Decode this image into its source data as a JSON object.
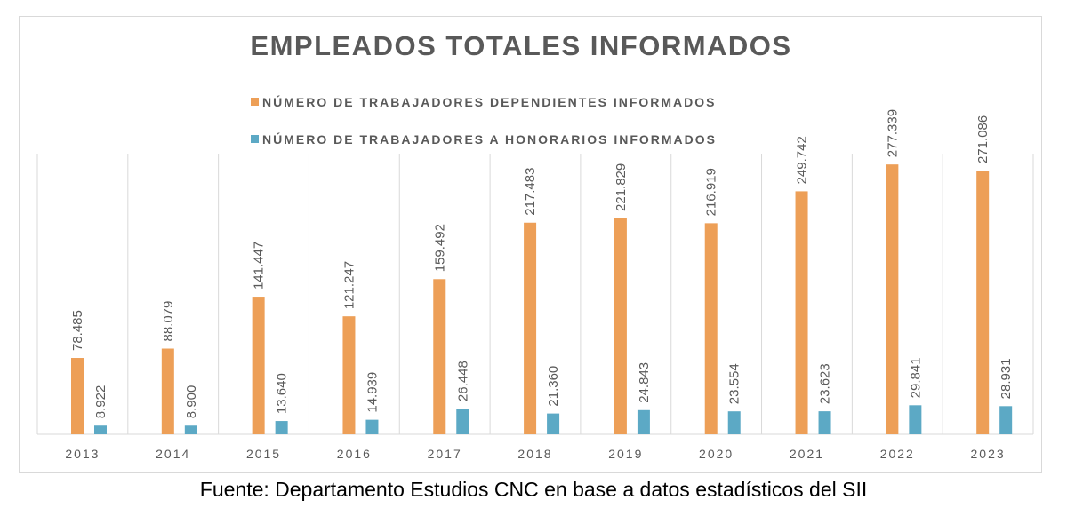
{
  "colors": {
    "dependientes": "#ed9f57",
    "honorarios": "#5ca9c5",
    "text": "#595959",
    "grid": "#d9d9d9"
  },
  "chart_data": {
    "type": "bar",
    "title": "EMPLEADOS TOTALES INFORMADOS",
    "xlabel": "",
    "ylabel": "",
    "ylim": [
      0,
      300000
    ],
    "grid": "vertical separators",
    "legend": "top-center",
    "categories": [
      "2013",
      "2014",
      "2015",
      "2016",
      "2017",
      "2018",
      "2019",
      "2020",
      "2021",
      "2022",
      "2023"
    ],
    "series": [
      {
        "name": "NÚMERO DE TRABAJADORES DEPENDIENTES INFORMADOS",
        "values": [
          78485,
          88079,
          141447,
          121247,
          159492,
          217483,
          221829,
          216919,
          249742,
          277339,
          271086
        ],
        "labels": [
          "78.485",
          "88.079",
          "141.447",
          "121.247",
          "159.492",
          "217.483",
          "221.829",
          "216.919",
          "249.742",
          "277.339",
          "271.086"
        ]
      },
      {
        "name": "NÚMERO DE TRABAJADORES A HONORARIOS INFORMADOS",
        "values": [
          8922,
          8900,
          13640,
          14939,
          26448,
          21360,
          24843,
          23554,
          23623,
          29841,
          28931
        ],
        "labels": [
          "8.922",
          "8.900",
          "13.640",
          "14.939",
          "26.448",
          "21.360",
          "24.843",
          "23.554",
          "23.623",
          "29.841",
          "28.931"
        ]
      }
    ]
  },
  "source": "Fuente: Departamento Estudios CNC en base a datos estadísticos del SII"
}
